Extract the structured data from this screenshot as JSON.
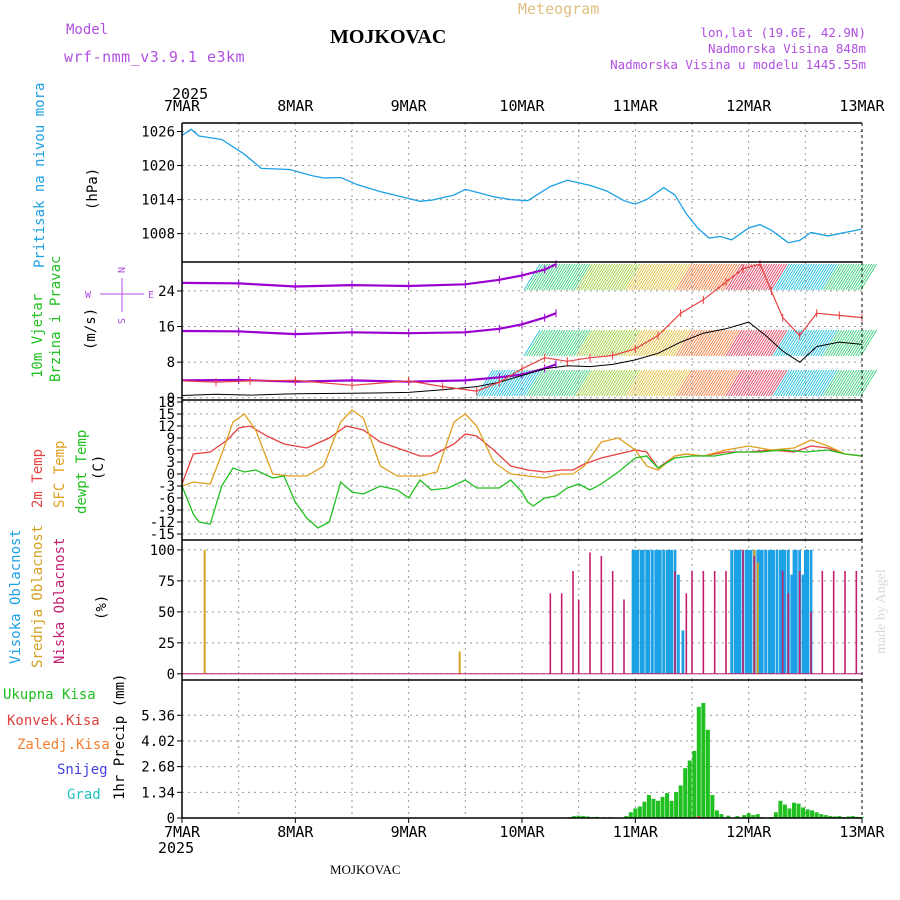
{
  "header": {
    "model_label": "Model",
    "model_name": "wrf-nmm_v3.9.1 e3km",
    "station": "MOJKOVAC",
    "product": "Meteogram",
    "lonlat": "lon,lat (19.6E, 42.9N)",
    "altitude": "Nadmorska Visina 848m",
    "model_altitude": "Nadmorska Visina u modelu 1445.55m",
    "footer_station": "MOJKOVAC",
    "credit": "made by Angel",
    "year_top": "2025",
    "year_bottom": "2025"
  },
  "colors": {
    "pressure": "#1ca0e6",
    "wind_dir": "#9a00d0",
    "temp2m": "#e84040",
    "sfc": "#e0a020",
    "dewpt": "#20c020",
    "high_cloud": "#1ca0e6",
    "mid_cloud": "#d4a020",
    "low_cloud": "#c02070",
    "precip_total": "#20c020",
    "precip_conv": "#e04040",
    "precip_frz": "#f08030",
    "snow": "#4040e0",
    "grad": "#20c0c0",
    "model_text": "#b050e0",
    "title_text": "#000000",
    "meteo_text": "#e0c080"
  },
  "x_ticks": [
    "7MAR",
    "8MAR",
    "9MAR",
    "10MAR",
    "11MAR",
    "12MAR",
    "13MAR"
  ],
  "chart_data": [
    {
      "type": "line",
      "name": "pressure",
      "ylabel_main": "Pritisak na nivou mora",
      "ylabel_unit": "(hPa)",
      "ylim": [
        1003,
        1027.5
      ],
      "yticks": [
        "1026",
        "1020",
        "1014",
        "1008"
      ],
      "ytick_values": [
        1026,
        1020,
        1014,
        1008
      ],
      "x": [
        0,
        0.08,
        0.15,
        0.35,
        0.55,
        0.7,
        0.95,
        1.15,
        1.25,
        1.4,
        1.55,
        1.75,
        2.0,
        2.1,
        2.2,
        2.4,
        2.5,
        2.6,
        2.75,
        2.9,
        3.05,
        3.25,
        3.4,
        3.6,
        3.75,
        3.9,
        4.0,
        4.1,
        4.25,
        4.35,
        4.45,
        4.55,
        4.65,
        4.75,
        4.85,
        5.0,
        5.1,
        5.2,
        5.35,
        5.45,
        5.55,
        5.7,
        5.8,
        6.0
      ],
      "values": [
        1025.3,
        1026.4,
        1025.2,
        1024.6,
        1022,
        1019.5,
        1019.3,
        1018.2,
        1017.8,
        1017.9,
        1016.6,
        1015.4,
        1014.2,
        1013.7,
        1013.9,
        1014.8,
        1015.8,
        1015.3,
        1014.5,
        1014,
        1013.8,
        1016.3,
        1017.4,
        1016.5,
        1015.5,
        1013.8,
        1013.2,
        1014,
        1016.1,
        1014.8,
        1011.5,
        1009,
        1007.2,
        1007.5,
        1006.9,
        1009,
        1009.6,
        1008.6,
        1006.4,
        1006.8,
        1008.2,
        1007.6,
        1008,
        1008.8
      ]
    },
    {
      "type": "line",
      "name": "wind",
      "ylabel_main": "10m Vjetar",
      "ylabel_sub": "Brzina i Pravac",
      "ylabel_unit": "(m/s)",
      "compass": {
        "w": "W",
        "n": "N",
        "s": "S",
        "e": "E"
      },
      "ylim": [
        -0.5,
        30.5
      ],
      "yticks": [
        "24",
        "16",
        "8",
        "0"
      ],
      "ytick_values": [
        24,
        16,
        8,
        0
      ],
      "series": [
        {
          "name": "dir_band_top",
          "x": [
            0,
            0.5,
            1,
            1.5,
            2,
            2.5,
            2.8,
            3.0,
            3.2,
            3.3
          ],
          "values": [
            25.8,
            25.7,
            25,
            25.3,
            25.1,
            25.5,
            26.5,
            27.5,
            28.8,
            30
          ]
        },
        {
          "name": "dir_band_mid",
          "x": [
            0,
            0.5,
            1,
            1.5,
            2,
            2.5,
            2.8,
            3.0,
            3.2,
            3.3
          ],
          "values": [
            15,
            14.9,
            14.3,
            14.7,
            14.5,
            14.7,
            15.5,
            16.5,
            18,
            19
          ]
        },
        {
          "name": "dir_band_low",
          "x": [
            0,
            0.5,
            1,
            1.5,
            2,
            2.5,
            2.8,
            3.0,
            3.2,
            3.3
          ],
          "values": [
            3.9,
            4,
            3.6,
            3.9,
            3.6,
            3.9,
            4.6,
            5.2,
            6.6,
            7.5
          ]
        },
        {
          "name": "speed",
          "x": [
            0,
            0.3,
            0.6,
            1,
            1.5,
            2,
            2.3,
            2.6,
            2.8,
            3.0,
            3.2,
            3.4,
            3.6,
            3.8,
            4.0,
            4.2,
            4.4,
            4.6,
            4.8,
            5.0,
            5.15,
            5.3,
            5.45,
            5.6,
            5.8,
            6.0
          ],
          "values": [
            0.5,
            0.8,
            0.6,
            0.9,
            1,
            1.2,
            1.8,
            2.5,
            3.5,
            5,
            6.5,
            7.2,
            7,
            7.5,
            8.5,
            10,
            12.5,
            14.5,
            15.5,
            17,
            14,
            10.5,
            8,
            11.5,
            12.5,
            12
          ]
        },
        {
          "name": "gust",
          "x": [
            0,
            0.3,
            0.6,
            1,
            1.5,
            2,
            2.3,
            2.6,
            2.8,
            3.0,
            3.2,
            3.4,
            3.6,
            3.8,
            4.0,
            4.2,
            4.4,
            4.6,
            4.8,
            4.95,
            5.1,
            5.2,
            5.3,
            5.45,
            5.6,
            5.8,
            6.0
          ],
          "values": [
            3.8,
            3.5,
            3.8,
            3.9,
            2.8,
            3.8,
            2.5,
            1.5,
            3.5,
            6.5,
            9,
            8.2,
            9,
            9.5,
            11,
            14,
            19,
            22,
            26,
            29,
            30,
            24,
            18,
            14,
            19,
            18.5,
            18
          ]
        }
      ]
    },
    {
      "type": "line",
      "name": "temperature",
      "ylabel_main": "2m Temp",
      "ylabel_sub": "SFC Temp",
      "ylabel_sub2": "dewpt Temp",
      "ylabel_unit": "(C)",
      "ylim": [
        -16.5,
        18.5
      ],
      "yticks": [
        "18",
        "15",
        "12",
        "9",
        "6",
        "3",
        "0",
        "-3",
        "-6",
        "-9",
        "-12",
        "-15"
      ],
      "ytick_values": [
        18,
        15,
        12,
        9,
        6,
        3,
        0,
        -3,
        -6,
        -9,
        -12,
        -15
      ],
      "series": [
        {
          "name": "2m_temp",
          "x": [
            0,
            0.1,
            0.25,
            0.4,
            0.5,
            0.6,
            0.75,
            0.9,
            1.1,
            1.3,
            1.45,
            1.6,
            1.75,
            1.9,
            2.1,
            2.2,
            2.4,
            2.5,
            2.6,
            2.75,
            2.9,
            3.05,
            3.2,
            3.35,
            3.45,
            3.55,
            3.7,
            3.85,
            4.0,
            4.1,
            4.2,
            4.35,
            4.45,
            4.6,
            4.8,
            5.0,
            5.2,
            5.4,
            5.55,
            5.7,
            5.85,
            6.0
          ],
          "values": [
            -2.5,
            5,
            5.5,
            8.5,
            11.5,
            12,
            9.5,
            7.5,
            6.5,
            9,
            12,
            11,
            8,
            6.5,
            4.5,
            4.5,
            7.5,
            10,
            9.5,
            6,
            2,
            1,
            0.5,
            1,
            1,
            2.5,
            4,
            5,
            6,
            5.5,
            1.5,
            4.5,
            5,
            4.5,
            5.5,
            5.5,
            6,
            5.5,
            7,
            6.5,
            5,
            4.5
          ]
        },
        {
          "name": "sfc_temp",
          "x": [
            0,
            0.1,
            0.25,
            0.35,
            0.45,
            0.55,
            0.65,
            0.8,
            0.95,
            1.1,
            1.25,
            1.4,
            1.5,
            1.6,
            1.75,
            1.9,
            2.1,
            2.25,
            2.4,
            2.5,
            2.6,
            2.75,
            2.9,
            3.05,
            3.2,
            3.35,
            3.45,
            3.55,
            3.7,
            3.85,
            4.0,
            4.1,
            4.2,
            4.35,
            4.45,
            4.6,
            4.8,
            5.0,
            5.2,
            5.4,
            5.55,
            5.7,
            5.85,
            6.0
          ],
          "values": [
            -3,
            -2,
            -2.5,
            5,
            13,
            15,
            11,
            0,
            -0.5,
            -0.5,
            2,
            13,
            16,
            14,
            2,
            -0.5,
            -0.5,
            0.5,
            13,
            15,
            12,
            3,
            0,
            -0.5,
            -1,
            0,
            0,
            2,
            8,
            9,
            6,
            2,
            1,
            4.5,
            5,
            4.5,
            6,
            7,
            6,
            6.5,
            8.5,
            7,
            5,
            4.5
          ]
        },
        {
          "name": "dewpt_temp",
          "x": [
            0,
            0.1,
            0.15,
            0.25,
            0.35,
            0.45,
            0.55,
            0.65,
            0.8,
            0.9,
            1.0,
            1.1,
            1.2,
            1.3,
            1.4,
            1.5,
            1.6,
            1.75,
            1.9,
            2.0,
            2.1,
            2.2,
            2.35,
            2.5,
            2.6,
            2.7,
            2.8,
            2.9,
            3.0,
            3.05,
            3.1,
            3.2,
            3.3,
            3.4,
            3.5,
            3.6,
            3.7,
            3.85,
            4.0,
            4.1,
            4.2,
            4.35,
            4.5,
            4.7,
            4.9,
            5.1,
            5.3,
            5.5,
            5.7,
            5.85,
            6.0
          ],
          "values": [
            -3,
            -10,
            -12,
            -12.5,
            -3,
            1.5,
            0.5,
            1,
            -1,
            -0.5,
            -7,
            -11,
            -13.5,
            -12,
            -2,
            -4.5,
            -5,
            -3,
            -4,
            -6,
            -1.5,
            -4,
            -3.5,
            -1.5,
            -3.5,
            -3.5,
            -3.5,
            -1.5,
            -4.5,
            -7,
            -8,
            -6,
            -5.5,
            -3.5,
            -2.5,
            -4,
            -2.5,
            0.5,
            4,
            4.5,
            1.5,
            4,
            4.5,
            4.5,
            5.5,
            5.5,
            6,
            5.5,
            6,
            5,
            4.5
          ]
        }
      ]
    },
    {
      "type": "bar",
      "name": "cloudiness",
      "ylabel_main": "Visoka Oblacnost",
      "ylabel_sub": "Srednja Oblacnost",
      "ylabel_sub2": "Niska Oblacnost",
      "ylabel_unit": "(%)",
      "ylim": [
        -5,
        108
      ],
      "yticks": [
        "100",
        "75",
        "50",
        "25",
        "0"
      ],
      "ytick_values": [
        100,
        75,
        50,
        25,
        0
      ],
      "series": [
        {
          "name": "high",
          "x": [
            3.98,
            4.0,
            4.02,
            4.05,
            4.07,
            4.1,
            4.12,
            4.15,
            4.18,
            4.2,
            4.22,
            4.25,
            4.28,
            4.3,
            4.32,
            4.35,
            4.38,
            4.42,
            4.85,
            4.88,
            4.9,
            4.92,
            4.95,
            4.98,
            5.0,
            5.02,
            5.05,
            5.08,
            5.1,
            5.12,
            5.15,
            5.18,
            5.2,
            5.22,
            5.25,
            5.28,
            5.3,
            5.32,
            5.35,
            5.38,
            5.4,
            5.42,
            5.45,
            5.48,
            5.5,
            5.52,
            5.55
          ],
          "values": [
            100,
            100,
            100,
            100,
            100,
            100,
            100,
            100,
            100,
            100,
            100,
            100,
            100,
            100,
            100,
            100,
            80,
            35,
            100,
            100,
            100,
            100,
            100,
            100,
            100,
            100,
            100,
            100,
            100,
            100,
            100,
            100,
            100,
            100,
            100,
            100,
            100,
            100,
            100,
            80,
            100,
            100,
            100,
            80,
            100,
            100,
            100
          ]
        },
        {
          "name": "mid",
          "x": [
            0.2,
            2.45,
            5.05,
            5.08
          ],
          "values": [
            100,
            18,
            100,
            90
          ]
        },
        {
          "name": "low",
          "x": [
            3.25,
            3.35,
            3.45,
            3.5,
            3.6,
            3.7,
            3.8,
            3.9,
            4.35,
            4.45,
            4.5,
            4.6,
            4.7,
            4.8,
            4.95,
            5.05,
            5.3,
            5.35,
            5.45,
            5.55,
            5.65,
            5.75,
            5.85,
            5.95
          ],
          "values": [
            65,
            65,
            83,
            60,
            98,
            95,
            83,
            60,
            83,
            65,
            83,
            83,
            83,
            83,
            100,
            95,
            83,
            65,
            83,
            50,
            83,
            83,
            83,
            83
          ]
        }
      ]
    },
    {
      "type": "bar",
      "name": "precipitation",
      "legend": [
        "Ukupna Kisa",
        "Konvek.Kisa",
        "Zaledj.Kisa",
        "Snijeg",
        "Grad"
      ],
      "ylabel_unit": "1hr Precip (mm)",
      "ylim": [
        0,
        7.2
      ],
      "yticks": [
        "5.36",
        "4.02",
        "2.68",
        "1.34",
        "0"
      ],
      "ytick_values": [
        5.36,
        4.02,
        2.68,
        1.34,
        0
      ],
      "series": [
        {
          "name": "total",
          "x": [
            3.42,
            3.46,
            3.5,
            3.54,
            3.58,
            3.62,
            3.66,
            3.72,
            3.78,
            3.84,
            3.92,
            3.96,
            4.0,
            4.04,
            4.08,
            4.12,
            4.16,
            4.2,
            4.24,
            4.28,
            4.32,
            4.36,
            4.4,
            4.44,
            4.48,
            4.52,
            4.56,
            4.6,
            4.64,
            4.68,
            4.72,
            4.76,
            4.82,
            4.9,
            4.96,
            5.0,
            5.04,
            5.08,
            5.12,
            5.2,
            5.24,
            5.28,
            5.32,
            5.36,
            5.4,
            5.44,
            5.48,
            5.52,
            5.56,
            5.6,
            5.64,
            5.68,
            5.72,
            5.76,
            5.8,
            5.84,
            5.88,
            5.92,
            5.96,
            6.0
          ],
          "values": [
            0.05,
            0.1,
            0.12,
            0.1,
            0.08,
            0.05,
            0.06,
            0.04,
            0.05,
            0.02,
            0.1,
            0.3,
            0.5,
            0.6,
            0.85,
            1.2,
            1.0,
            0.9,
            1.1,
            1.3,
            0.9,
            1.35,
            1.7,
            2.6,
            3.0,
            3.5,
            5.8,
            6.0,
            4.6,
            1.2,
            0.4,
            0.2,
            0.12,
            0.1,
            0.15,
            0.25,
            0.15,
            0.2,
            0.05,
            0.05,
            0.3,
            0.9,
            0.7,
            0.5,
            0.8,
            0.75,
            0.55,
            0.45,
            0.4,
            0.3,
            0.2,
            0.15,
            0.1,
            0.08,
            0.1,
            0.05,
            0.08,
            0.1,
            0.06,
            0.05
          ]
        },
        {
          "name": "convective",
          "x": [
            4.52,
            4.56,
            4.6
          ],
          "values": [
            0.06,
            0.1,
            0.05
          ]
        }
      ]
    }
  ]
}
